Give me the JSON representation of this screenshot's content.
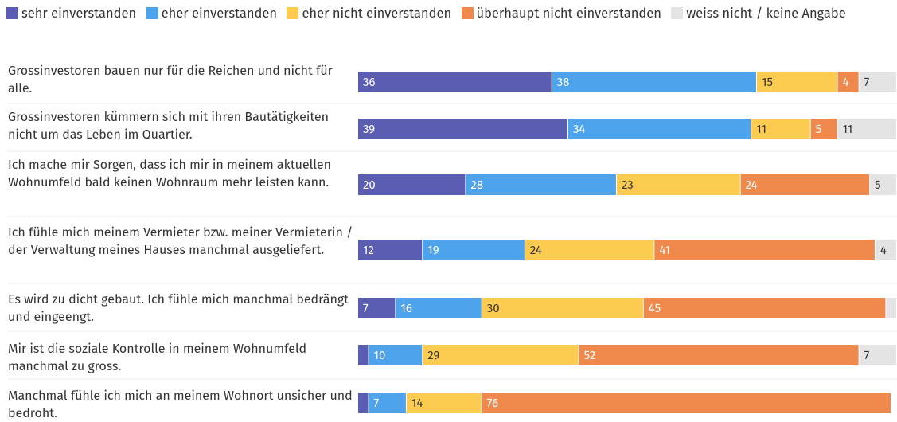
{
  "chart_data": {
    "type": "stacked-bar",
    "orientation": "horizontal",
    "categories": [
      "Grossinvestoren bauen nur für die Reichen und nicht für alle.",
      "Grossinvestoren kümmern sich mit ihren Bautätigkeiten nicht um das Leben im Quartier.",
      "Ich mache mir Sorgen, dass ich mir in meinem aktuellen Wohnumfeld bald keinen Wohnraum mehr leisten kann.",
      "Ich fühle mich meinem Vermieter bzw. meiner Vermieterin / der Verwaltung meines Hauses manchmal ausgeliefert.",
      "Es wird zu dicht gebaut. Ich fühle mich manchmal bedrängt und eingeengt.",
      "Mir ist die soziale Kontrolle in meinem Wohnumfeld manchmal zu gross.",
      "Manchmal fühle ich mich an meinem Wohnort unsicher und bedroht."
    ],
    "xlim": [
      0,
      100
    ],
    "series": [
      {
        "name": "sehr einverstanden",
        "color": "#5b5db3",
        "values": [
          36,
          39,
          20,
          12,
          7,
          2,
          2
        ]
      },
      {
        "name": "eher einverstanden",
        "color": "#4ea4ec",
        "values": [
          38,
          34,
          28,
          19,
          16,
          10,
          7
        ]
      },
      {
        "name": "eher nicht einverstanden",
        "color": "#fdcb4f",
        "values": [
          15,
          11,
          23,
          24,
          30,
          29,
          14
        ]
      },
      {
        "name": "überhaupt nicht einverstanden",
        "color": "#ef8a4c",
        "values": [
          4,
          5,
          24,
          41,
          45,
          52,
          76
        ]
      },
      {
        "name": "weiss nicht / keine Angabe",
        "color": "#e4e4e4",
        "values": [
          7,
          11,
          5,
          4,
          2,
          7,
          0
        ]
      }
    ]
  }
}
